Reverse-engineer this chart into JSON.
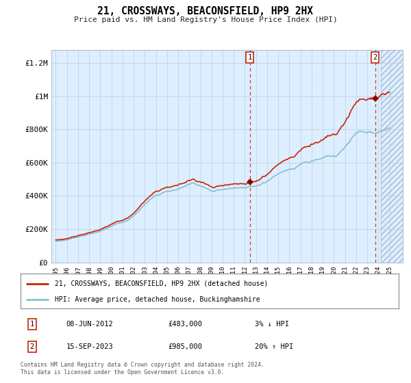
{
  "title": "21, CROSSWAYS, BEACONSFIELD, HP9 2HX",
  "subtitle": "Price paid vs. HM Land Registry's House Price Index (HPI)",
  "ylabel_ticks": [
    "£0",
    "£200K",
    "£400K",
    "£600K",
    "£800K",
    "£1M",
    "£1.2M"
  ],
  "ylim": [
    0,
    1280000
  ],
  "yticks": [
    0,
    200000,
    400000,
    600000,
    800000,
    1000000,
    1200000
  ],
  "legend_line1": "21, CROSSWAYS, BEACONSFIELD, HP9 2HX (detached house)",
  "legend_line2": "HPI: Average price, detached house, Buckinghamshire",
  "sale1_date": "08-JUN-2012",
  "sale1_price": "£483,000",
  "sale1_hpi": "3% ↓ HPI",
  "sale2_date": "15-SEP-2023",
  "sale2_price": "£985,000",
  "sale2_hpi": "20% ↑ HPI",
  "copyright_text": "Contains HM Land Registry data © Crown copyright and database right 2024.\nThis data is licensed under the Open Government Licence v3.0.",
  "hpi_color": "#89bdd3",
  "price_color": "#cc2200",
  "marker_color": "#8b0000",
  "bg_color": "#ddeeff",
  "grid_color": "#bbccdd",
  "sale1_x": 2012.44,
  "sale2_x": 2023.71,
  "sale1_y": 483000,
  "sale2_y": 985000,
  "hatch_start": 2024.25,
  "xlim_left": 1994.6,
  "xlim_right": 2026.2
}
